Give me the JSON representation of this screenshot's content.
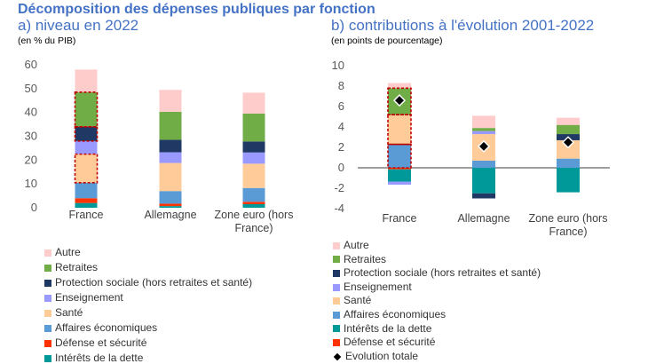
{
  "title": "Décomposition des dépenses publiques par fonction",
  "colors": {
    "Autre": "#FFCCCC",
    "Retraites": "#70AD47",
    "Protection sociale (hors retraites et santé)": "#1F3864",
    "Enseignement": "#9999FF",
    "Santé": "#FFCC99",
    "Affaires économiques": "#5B9BD5",
    "Défense et sécurité": "#FF3300",
    "Intérêts de la dette": "#009999",
    "Evolution totale": "#000000"
  },
  "chart_data": [
    {
      "type": "bar",
      "stacked": true,
      "title": "a) niveau en 2022",
      "ylabel": "(en % du PIB)",
      "ylim": [
        0,
        60
      ],
      "yticks": [
        0,
        10,
        20,
        30,
        40,
        50,
        60
      ],
      "categories": [
        "France",
        "Allemagne",
        "Zone euro (hors France)"
      ],
      "highlighted": {
        "France": [
          "Retraites",
          "Protection sociale (hors retraites et santé)",
          "Santé"
        ]
      },
      "series": [
        {
          "name": "Intérêts de la dette",
          "values": [
            2,
            0.7,
            1.5
          ]
        },
        {
          "name": "Défense et sécurité",
          "values": [
            2,
            1,
            1
          ]
        },
        {
          "name": "Affaires économiques",
          "values": [
            6.5,
            5.3,
            5.8
          ]
        },
        {
          "name": "Santé",
          "values": [
            12,
            11.8,
            10.2
          ]
        },
        {
          "name": "Enseignement",
          "values": [
            5.5,
            4.5,
            4.7
          ]
        },
        {
          "name": "Protection sociale (hors retraites et santé)",
          "values": [
            6,
            5.2,
            4.6
          ]
        },
        {
          "name": "Retraites",
          "values": [
            14.5,
            11.8,
            11.7
          ]
        },
        {
          "name": "Autre",
          "values": [
            9.5,
            9.2,
            8.8
          ]
        }
      ],
      "legend": [
        "Autre",
        "Retraites",
        "Protection sociale (hors retraites et santé)",
        "Enseignement",
        "Santé",
        "Affaires économiques",
        "Défense et sécurité",
        "Intérêts de la dette"
      ],
      "legend_position": "bottom"
    },
    {
      "type": "bar",
      "stacked": true,
      "title": "b) contributions à l'évolution 2001-2022",
      "ylabel": "(en points de pourcentage)",
      "ylim": [
        -4,
        10
      ],
      "yticks": [
        -4,
        -2,
        0,
        2,
        4,
        6,
        8,
        10
      ],
      "categories": [
        "France",
        "Allemagne",
        "Zone euro (hors France)"
      ],
      "highlighted": {
        "France": [
          "Retraites",
          "Santé",
          "Affaires économiques"
        ]
      },
      "series": [
        {
          "name": "Défense et sécurité",
          "values": [
            -0.15,
            0,
            0
          ]
        },
        {
          "name": "Intérêts de la dette",
          "values": [
            -1.2,
            -2.5,
            -2.4
          ]
        },
        {
          "name": "Affaires économiques",
          "values": [
            2.3,
            0.7,
            0.9
          ]
        },
        {
          "name": "Santé",
          "values": [
            2.9,
            2.6,
            1.8
          ]
        },
        {
          "name": "Enseignement",
          "values": [
            -0.3,
            0.3,
            0
          ]
        },
        {
          "name": "Protection sociale (hors retraites et santé)",
          "values": [
            0,
            -0.5,
            0.6
          ]
        },
        {
          "name": "Retraites",
          "values": [
            2.6,
            0.3,
            0.9
          ]
        },
        {
          "name": "Autre",
          "values": [
            0.5,
            1.2,
            0.7
          ]
        }
      ],
      "total": {
        "name": "Evolution totale",
        "values": [
          6.6,
          2.1,
          2.5
        ]
      },
      "legend": [
        "Autre",
        "Retraites",
        "Protection sociale (hors retraites et santé)",
        "Enseignement",
        "Santé",
        "Affaires économiques",
        "Intérêts de la dette",
        "Défense et sécurité",
        "Evolution totale"
      ],
      "legend_position": "bottom"
    }
  ]
}
